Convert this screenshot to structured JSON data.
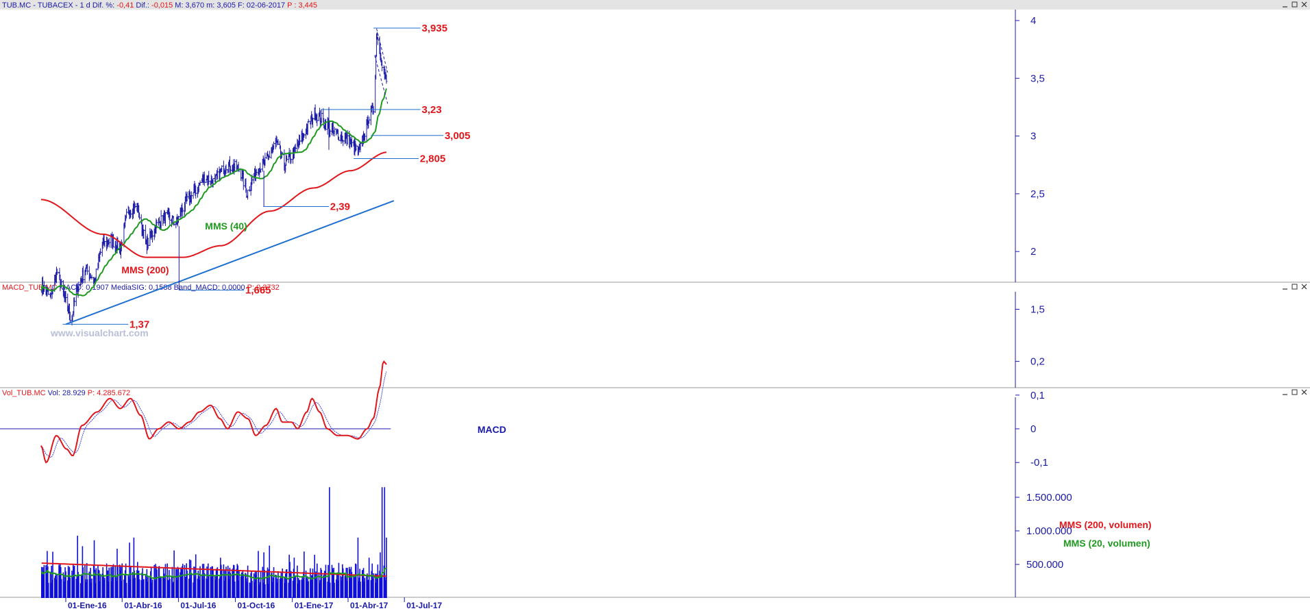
{
  "panels": {
    "price": {
      "header": [
        {
          "text": "TUB.MC - TUBACEX -  1 d  Dif. %:",
          "color": "#1a1aa8"
        },
        {
          "text": " -0,41 ",
          "color": "#e0161b"
        },
        {
          "text": " Dif.:",
          "color": "#1a1aa8"
        },
        {
          "text": " -0,015 ",
          "color": "#e0161b"
        },
        {
          "text": " M: 3,670  m: 3,605  F: 02-06-2017 ",
          "color": "#1a1aa8"
        },
        {
          "text": " P : 3,445",
          "color": "#e0161b"
        }
      ],
      "watermark": "www.visualchart.com"
    },
    "macd": {
      "header": [
        {
          "text": "MACD_TUB.MC ",
          "color": "#e0161b"
        },
        {
          "text": " MACD: 0,1907  MediaSIG: 0,1588  Band_MACD: 0,0000 ",
          "color": "#1a1aa8"
        },
        {
          "text": " P: 0,3732",
          "color": "#e0161b"
        }
      ]
    },
    "volume": {
      "header": [
        {
          "text": "Vol_TUB.MC ",
          "color": "#e0161b"
        },
        {
          "text": " Vol: 28.929 ",
          "color": "#1a1aa8"
        },
        {
          "text": " P: 4.285.672",
          "color": "#e0161b"
        }
      ]
    }
  },
  "chart_data": [
    {
      "type": "line",
      "series": [],
      "x": [
        "01-Ene-16",
        "01-Abr-16",
        "01-Jul-16",
        "01-Oct-16",
        "01-Ene-17",
        "01-Abr-17",
        "01-Jul-17"
      ],
      "y_ticks": [
        "4",
        "3,5",
        "3",
        "2,5",
        "2",
        "1,5"
      ],
      "ylim": [
        1.2,
        4.05
      ],
      "levels": [
        "3,935",
        "3,23",
        "3,005",
        "2,805",
        "2,39",
        "1,665",
        "1,37"
      ],
      "annotations": [
        {
          "text": "MMS (40)",
          "color": "#1f9a1f"
        },
        {
          "text": "MMS (200)",
          "color": "#e0161b"
        }
      ],
      "colors": {
        "bars": "#1a1aa8",
        "mms40": "#1f9a1f",
        "mms200": "#e0161b",
        "trend": "#1e6fd0"
      }
    },
    {
      "type": "line",
      "title": "MACD",
      "y_ticks": [
        "0,2",
        "0,1",
        "0",
        "-0,1"
      ],
      "ylim": [
        -0.13,
        0.22
      ]
    },
    {
      "type": "bar",
      "y_ticks": [
        "1.500.000",
        "1.000.000",
        "500.000"
      ],
      "annotations": [
        {
          "text": "MMS (200, volumen)",
          "color": "#e0161b"
        },
        {
          "text": "MMS (20, volumen)",
          "color": "#1f9a1f"
        }
      ]
    }
  ]
}
